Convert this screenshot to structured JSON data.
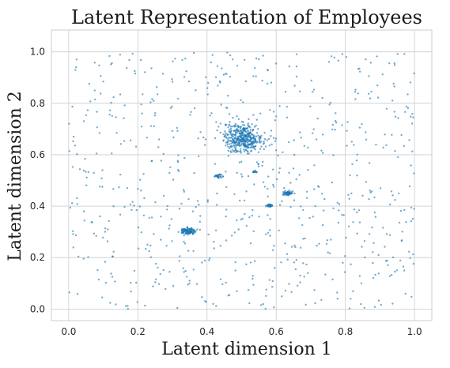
{
  "chart_data": {
    "type": "scatter",
    "title": "Latent Representation of Employees",
    "xlabel": "Latent dimension 1",
    "ylabel": "Latent dimension 2",
    "xlim": [
      -0.05,
      1.05
    ],
    "ylim": [
      -0.045,
      1.085
    ],
    "x_ticks": [
      "0.0",
      "0.2",
      "0.4",
      "0.6",
      "0.8",
      "1.0"
    ],
    "y_ticks": [
      "0.0",
      "0.2",
      "0.4",
      "0.6",
      "0.8",
      "1.0"
    ],
    "grid": true,
    "marker_color": "#1f77b4",
    "background_points": {
      "approx_count": 700,
      "distribution": "uniform",
      "x_range": [
        0,
        1
      ],
      "y_range": [
        0,
        1
      ]
    },
    "clusters": [
      {
        "center": [
          0.505,
          0.665
        ],
        "spread": [
          0.028,
          0.028
        ],
        "approx_count": 400
      },
      {
        "center": [
          0.345,
          0.303
        ],
        "spread": [
          0.012,
          0.006
        ],
        "approx_count": 120
      },
      {
        "center": [
          0.635,
          0.45
        ],
        "spread": [
          0.007,
          0.004
        ],
        "approx_count": 60
      },
      {
        "center": [
          0.58,
          0.402
        ],
        "spread": [
          0.005,
          0.003
        ],
        "approx_count": 40
      },
      {
        "center": [
          0.432,
          0.517
        ],
        "spread": [
          0.005,
          0.003
        ],
        "approx_count": 30
      },
      {
        "center": [
          0.537,
          0.534
        ],
        "spread": [
          0.003,
          0.002
        ],
        "approx_count": 15
      }
    ]
  }
}
